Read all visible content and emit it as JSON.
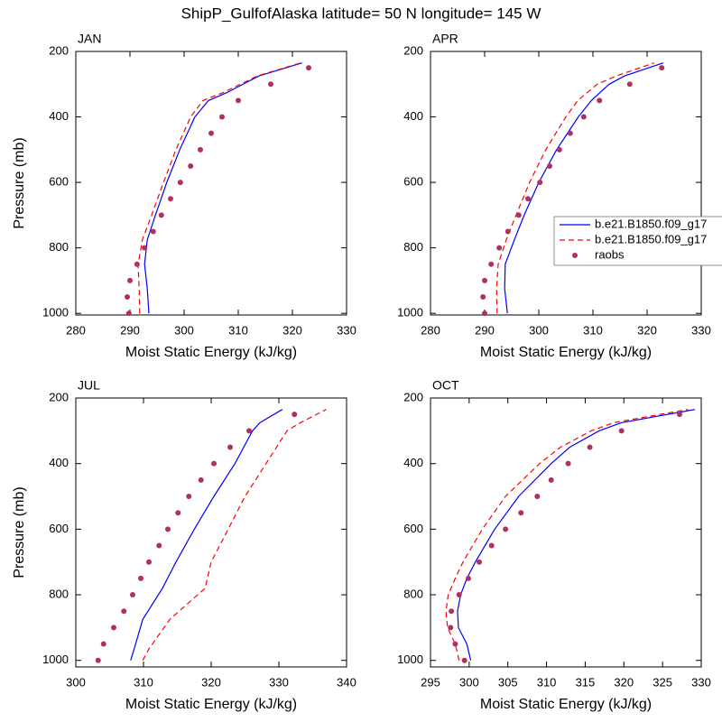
{
  "title": "ShipP_GulfofAlaska  latitude= 50 N longitude= 145 W",
  "chart_data": [
    {
      "type": "line",
      "label": "JAN",
      "xlabel": "Moist Static Energy (kJ/kg)",
      "ylabel": "Pressure (mb)",
      "xlim": [
        280,
        330
      ],
      "xticks": [
        280,
        290,
        300,
        310,
        320,
        330
      ],
      "ylim": [
        1005,
        200
      ],
      "yticks": [
        200,
        400,
        600,
        800,
        1000
      ],
      "series": [
        {
          "color": "#0000ff",
          "style": "solid",
          "x": [
            293.5,
            293.2,
            292.7,
            293.2,
            294.7,
            296.8,
            299.2,
            302,
            304.5,
            308,
            313.8,
            321.8
          ],
          "y": [
            1000,
            925,
            850,
            775,
            700,
            600,
            500,
            400,
            350,
            325,
            275,
            235
          ]
        },
        {
          "color": "#ff0000",
          "style": "dashed",
          "x": [
            291.8,
            291.7,
            291.5,
            292.3,
            294,
            296.2,
            298.5,
            301.2,
            303.5,
            307.3,
            313.5,
            321.5
          ],
          "y": [
            1000,
            925,
            850,
            775,
            700,
            600,
            500,
            400,
            350,
            325,
            275,
            235
          ]
        },
        {
          "color": "#b03060",
          "style": "markers",
          "x": [
            289.8,
            289.5,
            290,
            291.3,
            292.7,
            294.3,
            295.8,
            297.5,
            299.3,
            301.2,
            303,
            305,
            307,
            310,
            316,
            323
          ],
          "y": [
            1000,
            950,
            900,
            850,
            800,
            750,
            700,
            650,
            600,
            550,
            500,
            450,
            400,
            350,
            300,
            250
          ]
        }
      ]
    },
    {
      "type": "line",
      "label": "APR",
      "xlabel": "Moist Static Energy (kJ/kg)",
      "xlim": [
        280,
        330
      ],
      "xticks": [
        280,
        290,
        300,
        310,
        320,
        330
      ],
      "ylim": [
        1005,
        200
      ],
      "yticks": [
        200,
        400,
        600,
        800,
        1000
      ],
      "legend": "right",
      "series": [
        {
          "name": "b.e21.B1850.f09_g17",
          "color": "#0000ff",
          "style": "solid",
          "x": [
            294.2,
            293.7,
            293.8,
            295.5,
            297.3,
            300,
            303.3,
            307.3,
            309.7,
            313,
            315.8,
            323
          ],
          "y": [
            1000,
            925,
            850,
            775,
            700,
            600,
            500,
            400,
            350,
            300,
            275,
            235
          ]
        },
        {
          "name": "b.e21.B1850.f09_g17",
          "color": "#ff0000",
          "style": "dashed",
          "x": [
            292.3,
            292.2,
            292.5,
            294,
            295.8,
            298.3,
            301.3,
            305,
            307.2,
            310.8,
            314.3,
            321.3
          ],
          "y": [
            1000,
            925,
            850,
            775,
            700,
            600,
            500,
            400,
            350,
            300,
            275,
            235
          ]
        },
        {
          "name": "raobs",
          "color": "#b03060",
          "style": "markers",
          "x": [
            290,
            289.7,
            290,
            291.2,
            292.7,
            294.3,
            296.3,
            298,
            300.2,
            302,
            303.8,
            305.8,
            308.3,
            311.2,
            316.8,
            322.7
          ],
          "y": [
            1000,
            950,
            900,
            850,
            800,
            750,
            700,
            650,
            600,
            550,
            500,
            450,
            400,
            350,
            300,
            250
          ]
        }
      ]
    },
    {
      "type": "line",
      "label": "JUL",
      "xlabel": "Moist Static Energy (kJ/kg)",
      "ylabel": "Pressure (mb)",
      "xlim": [
        300,
        340
      ],
      "xticks": [
        300,
        310,
        320,
        330,
        340
      ],
      "ylim": [
        1020,
        200
      ],
      "yticks": [
        200,
        400,
        600,
        800,
        1000
      ],
      "series": [
        {
          "color": "#0000ff",
          "style": "solid",
          "x": [
            308.1,
            308.7,
            309.9,
            312.8,
            314.8,
            317.5,
            320.4,
            323.5,
            326.1,
            327.2,
            330.5
          ],
          "y": [
            1000,
            960,
            875,
            780,
            700,
            600,
            500,
            400,
            300,
            275,
            235
          ]
        },
        {
          "color": "#ff0000",
          "style": "dashed",
          "x": [
            309.9,
            310.8,
            313.9,
            319.1,
            320,
            322.5,
            325,
            328.1,
            331.2,
            333.2,
            337
          ],
          "y": [
            1000,
            965,
            875,
            780,
            700,
            600,
            500,
            400,
            300,
            275,
            235
          ]
        },
        {
          "color": "#b03060",
          "style": "markers",
          "x": [
            303.3,
            304.1,
            305.6,
            307.1,
            308.4,
            309.6,
            310.8,
            312.3,
            313.6,
            315.1,
            316.7,
            318.5,
            320.4,
            322.8,
            325.6,
            332.3
          ],
          "y": [
            1000,
            950,
            900,
            850,
            800,
            750,
            700,
            650,
            600,
            550,
            500,
            450,
            400,
            350,
            300,
            250
          ]
        }
      ]
    },
    {
      "type": "line",
      "label": "OCT",
      "xlabel": "Moist Static Energy (kJ/kg)",
      "xlim": [
        295,
        330
      ],
      "xticks": [
        295,
        300,
        305,
        310,
        315,
        320,
        325,
        330
      ],
      "ylim": [
        1020,
        200
      ],
      "yticks": [
        200,
        400,
        600,
        800,
        1000
      ],
      "series": [
        {
          "color": "#0000ff",
          "style": "solid",
          "x": [
            300.2,
            299.7,
            298.6,
            298.5,
            298.9,
            299.7,
            300.8,
            303.3,
            306.4,
            310.6,
            313,
            316.8,
            319.7,
            329.2
          ],
          "y": [
            1000,
            950,
            900,
            850,
            800,
            750,
            700,
            600,
            500,
            400,
            350,
            300,
            275,
            235
          ]
        },
        {
          "color": "#ff0000",
          "style": "dashed",
          "x": [
            298.7,
            298.2,
            297.2,
            297,
            297.3,
            298.2,
            299.2,
            301.7,
            304.7,
            309.1,
            311.8,
            315.8,
            318.7,
            328.3
          ],
          "y": [
            1000,
            950,
            900,
            850,
            800,
            750,
            700,
            600,
            500,
            400,
            350,
            300,
            275,
            235
          ]
        },
        {
          "color": "#b03060",
          "style": "markers",
          "x": [
            299.4,
            298.2,
            297.6,
            297.7,
            298.7,
            299.9,
            301.3,
            302.9,
            304.7,
            306.7,
            308.8,
            310.6,
            312.8,
            315.6,
            319.7,
            327.2
          ],
          "y": [
            1000,
            950,
            900,
            850,
            800,
            750,
            700,
            650,
            600,
            550,
            500,
            450,
            400,
            350,
            300,
            250
          ]
        }
      ]
    }
  ]
}
